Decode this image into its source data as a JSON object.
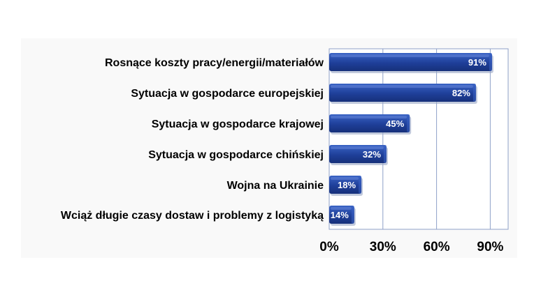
{
  "chart_data": {
    "type": "bar",
    "orientation": "horizontal",
    "categories": [
      "Rosnące koszty pracy/energii/materiałów",
      "Sytuacja w gospodarce europejskiej",
      "Sytuacja w gospodarce krajowej",
      "Sytuacja w gospodarce chińskiej",
      "Wojna na Ukrainie",
      "Wciąż długie czasy dostaw i problemy z logistyką"
    ],
    "values": [
      91,
      82,
      45,
      32,
      18,
      14
    ],
    "value_labels": [
      "91%",
      "82%",
      "45%",
      "32%",
      "18%",
      "14%"
    ],
    "x_ticks": [
      0,
      30,
      60,
      90
    ],
    "x_tick_labels": [
      "0%",
      "30%",
      "60%",
      "90%"
    ],
    "xlim": [
      0,
      100
    ],
    "grid": true,
    "legend": "none",
    "colors": {
      "bar": "#1f3f99",
      "bar_light": "#3a63c4",
      "bar_dark": "#16307a",
      "plot_bg": "#ffffff",
      "page_bg": "#f9f9f9",
      "gridline": "#8ea0c8",
      "value_text": "#ffffff"
    }
  }
}
